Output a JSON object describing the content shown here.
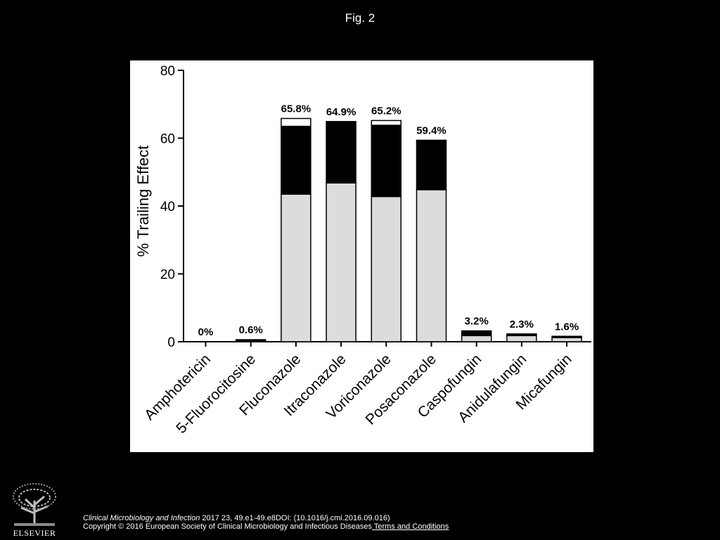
{
  "figure": {
    "title": "Fig. 2"
  },
  "colors": {
    "background": "#000000",
    "panel": "#ffffff",
    "series_light": "#dcdcdc",
    "series_dark": "#000000",
    "series_top": "#ffffff"
  },
  "chart_data": {
    "type": "bar",
    "stacked": true,
    "title": "",
    "xlabel": "",
    "ylabel": "% Trailing Effect",
    "ylim": [
      0,
      80
    ],
    "yticks": [
      0,
      20,
      40,
      60,
      80
    ],
    "grid": false,
    "legend": "none",
    "categories": [
      "Amphotericin",
      "5-Fluorocitosine",
      "Fluconazole",
      "Itraconazole",
      "Voriconazole",
      "Posaconazole",
      "Caspofungin",
      "Anidulafungin",
      "Micafungin"
    ],
    "series": [
      {
        "values": [
          0,
          0,
          43.5,
          46.8,
          42.8,
          44.8,
          1.8,
          1.8,
          1.2
        ],
        "color": "#dcdcdc"
      },
      {
        "values": [
          0,
          0.6,
          20.0,
          18.1,
          21.0,
          14.3,
          1.4,
          0.5,
          0.4
        ],
        "color": "#000000"
      },
      {
        "values": [
          0,
          0,
          2.3,
          0.0,
          1.4,
          0.3,
          0,
          0,
          0
        ],
        "color": "#ffffff"
      }
    ],
    "data_labels": [
      "0%",
      "0.6%",
      "65.8%",
      "64.9%",
      "65.2%",
      "59.4%",
      "3.2%",
      "2.3%",
      "1.6%"
    ]
  },
  "footer": {
    "journal": "Clinical Microbiology and Infection",
    "citation": " 2017 23, 49.e1-49.e8DOI: (10.1016/j.cmi.2016.09.016)",
    "copyright": "Copyright © 2016 European Society of Clinical Microbiology and Infectious Diseases",
    "terms_link": " Terms and Conditions",
    "publisher_logo": "ELSEVIER"
  }
}
